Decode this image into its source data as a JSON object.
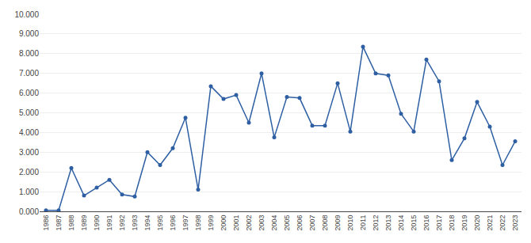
{
  "chart_data": {
    "type": "line",
    "x": [
      1986,
      1987,
      1988,
      1989,
      1990,
      1991,
      1992,
      1993,
      1994,
      1995,
      1996,
      1997,
      1998,
      1999,
      2000,
      2001,
      2002,
      2003,
      2004,
      2005,
      2006,
      2007,
      2008,
      2009,
      2010,
      2011,
      2012,
      2013,
      2014,
      2015,
      2016,
      2017,
      2018,
      2019,
      2020,
      2021,
      2022,
      2023
    ],
    "values": [
      50,
      50,
      2200,
      800,
      1200,
      1600,
      850,
      750,
      3000,
      2350,
      3200,
      4750,
      1100,
      6350,
      5700,
      5900,
      4500,
      7000,
      3750,
      5800,
      5750,
      4350,
      4350,
      6500,
      4050,
      8350,
      7000,
      6900,
      4950,
      4050,
      7700,
      6600,
      2600,
      3700,
      5550,
      4300,
      2350,
      3550
    ],
    "color": "#2E5FA3",
    "marker": "circle",
    "xlim": [
      1985.5,
      2023.5
    ],
    "xticks": [
      1986,
      1987,
      1988,
      1989,
      1990,
      1991,
      1992,
      1993,
      1994,
      1995,
      1996,
      1997,
      1998,
      1999,
      2000,
      2001,
      2002,
      2003,
      2004,
      2005,
      2006,
      2007,
      2008,
      2009,
      2010,
      2011,
      2012,
      2013,
      2014,
      2015,
      2016,
      2017,
      2018,
      2019,
      2020,
      2021,
      2022,
      2023
    ],
    "ylim": [
      0,
      10000
    ],
    "yticks": [
      {
        "value": 0,
        "label": "0.000"
      },
      {
        "value": 1000,
        "label": "1.000"
      },
      {
        "value": 2000,
        "label": "2.000"
      },
      {
        "value": 3000,
        "label": "3.000"
      },
      {
        "value": 4000,
        "label": "4.000"
      },
      {
        "value": 5000,
        "label": "5.000"
      },
      {
        "value": 6000,
        "label": "6.000"
      },
      {
        "value": 7000,
        "label": "7.000"
      },
      {
        "value": 8000,
        "label": "8.000"
      },
      {
        "value": 9000,
        "label": "9.000"
      },
      {
        "value": 10000,
        "label": "10.000"
      }
    ],
    "grid": "y"
  }
}
